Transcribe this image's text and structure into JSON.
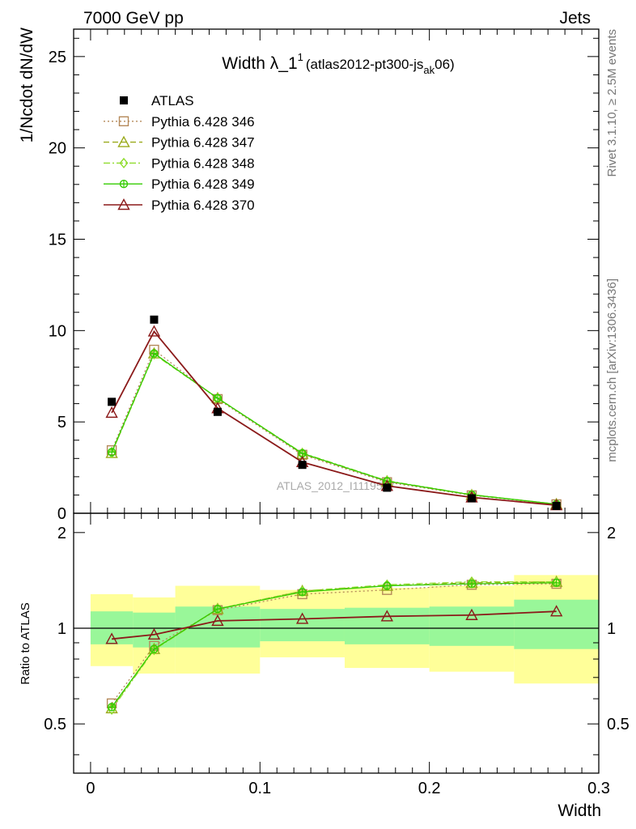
{
  "header": {
    "left": "7000 GeV pp",
    "right": "Jets"
  },
  "title": {
    "main": "Width λ_1",
    "sup": "1",
    "tag_pre": "(atlas2012-pt300-js",
    "tag_sub": "ak",
    "tag_post": "06)"
  },
  "side_labels": {
    "rivet": "Rivet 3.1.10, ≥ 2.5M events",
    "mcplots": "mcplots.cern.ch [arXiv:1306.3436]"
  },
  "watermark": "ATLAS_2012_I1119557",
  "chart_data": [
    {
      "type": "line",
      "title": "Width λ_1^1 (atlas2012-pt300-js_ak06)",
      "xlabel": "Width",
      "ylabel": "1/Ncdot dN/dW",
      "xlim": [
        -0.01,
        0.3
      ],
      "ylim": [
        0,
        26.5
      ],
      "x_ticks": [
        "0",
        "0.1",
        "0.2",
        "0.3"
      ],
      "y_ticks": [
        "0",
        "5",
        "10",
        "15",
        "20",
        "25"
      ],
      "legend_position": "top-left",
      "x": [
        0.0125,
        0.0375,
        0.075,
        0.125,
        0.175,
        0.225,
        0.275
      ],
      "data": {
        "name": "ATLAS",
        "color": "#000000",
        "marker": "filled-square",
        "values": [
          6.1,
          10.6,
          5.55,
          2.65,
          1.4,
          0.82,
          0.4
        ]
      },
      "series": [
        {
          "name": "Pythia 6.428 346",
          "color": "#b5895a",
          "style": "dotted",
          "marker": "open-square",
          "values": [
            3.45,
            8.95,
            6.25,
            3.2,
            1.7,
            0.98,
            0.49
          ]
        },
        {
          "name": "Pythia 6.428 347",
          "color": "#9aaa1c",
          "style": "dashed",
          "marker": "open-triangle",
          "values": [
            3.3,
            8.75,
            6.3,
            3.25,
            1.75,
            1.0,
            0.5
          ]
        },
        {
          "name": "Pythia 6.428 348",
          "color": "#8fdc2e",
          "style": "dashdot",
          "marker": "open-diamond",
          "values": [
            3.3,
            8.7,
            6.3,
            3.3,
            1.78,
            1.02,
            0.5
          ]
        },
        {
          "name": "Pythia 6.428 349",
          "color": "#33cc00",
          "style": "solid",
          "marker": "open-circle-cross",
          "values": [
            3.35,
            8.75,
            6.3,
            3.28,
            1.76,
            1.01,
            0.5
          ]
        },
        {
          "name": "Pythia 6.428 370",
          "color": "#8b1a1a",
          "style": "solid",
          "marker": "open-triangle",
          "values": [
            5.5,
            9.95,
            5.75,
            2.8,
            1.5,
            0.87,
            0.44
          ]
        }
      ]
    },
    {
      "type": "line",
      "title": "",
      "xlabel": "Width",
      "ylabel": "Ratio to ATLAS",
      "xlim": [
        -0.01,
        0.3
      ],
      "ylim": [
        0.35,
        2.3
      ],
      "x_ticks": [
        "0",
        "0.1",
        "0.2",
        "0.3"
      ],
      "y_ticks": [
        "0.5",
        "1",
        "2"
      ],
      "bins": [
        [
          0,
          0.025
        ],
        [
          0.025,
          0.05
        ],
        [
          0.05,
          0.1
        ],
        [
          0.1,
          0.15
        ],
        [
          0.15,
          0.2
        ],
        [
          0.2,
          0.25
        ],
        [
          0.25,
          0.3
        ]
      ],
      "band_stat": {
        "color": "#99f799",
        "lo": [
          0.89,
          0.87,
          0.87,
          0.91,
          0.89,
          0.88,
          0.86
        ],
        "hi": [
          1.13,
          1.12,
          1.17,
          1.15,
          1.16,
          1.17,
          1.23
        ]
      },
      "band_total": {
        "color": "#ffff99",
        "lo": [
          0.76,
          0.72,
          0.72,
          0.81,
          0.75,
          0.73,
          0.67
        ],
        "hi": [
          1.28,
          1.25,
          1.36,
          1.32,
          1.34,
          1.36,
          1.47
        ]
      },
      "x": [
        0.0125,
        0.0375,
        0.075,
        0.125,
        0.175,
        0.225,
        0.275
      ],
      "series": [
        {
          "name": "Pythia 6.428 346",
          "values": [
            0.58,
            0.88,
            1.14,
            1.28,
            1.32,
            1.37,
            1.38
          ]
        },
        {
          "name": "Pythia 6.428 347",
          "values": [
            0.56,
            0.86,
            1.15,
            1.31,
            1.36,
            1.39,
            1.4
          ]
        },
        {
          "name": "Pythia 6.428 348",
          "values": [
            0.555,
            0.855,
            1.15,
            1.31,
            1.37,
            1.4,
            1.4
          ]
        },
        {
          "name": "Pythia 6.428 349",
          "values": [
            0.565,
            0.86,
            1.15,
            1.3,
            1.36,
            1.38,
            1.39
          ]
        },
        {
          "name": "Pythia 6.428 370",
          "values": [
            0.925,
            0.955,
            1.055,
            1.07,
            1.09,
            1.1,
            1.13
          ]
        }
      ]
    }
  ]
}
